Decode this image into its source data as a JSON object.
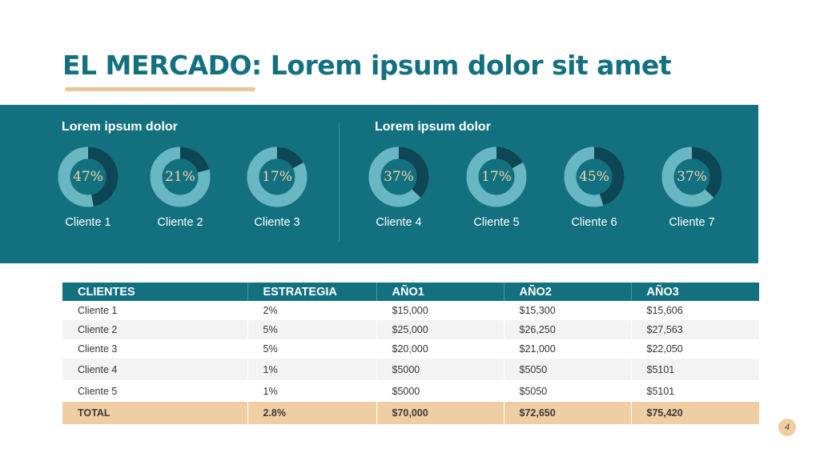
{
  "slide": {
    "title": "EL MERCADO: Lorem ipsum dolor sit amet",
    "page_number": "4"
  },
  "band": {
    "group_labels": [
      "Lorem ipsum dolor",
      "Lorem ipsum dolor"
    ]
  },
  "colors": {
    "teal": "#13707f",
    "ring_light": "#6ab7c4",
    "ring_dark": "#0d4654",
    "accent": "#f0d3ad",
    "total_row": "#f0cea4"
  },
  "chart_data": {
    "type": "pie",
    "style": "donut",
    "categories": [
      "Cliente 1",
      "Cliente 2",
      "Cliente 3",
      "Cliente 4",
      "Cliente 5",
      "Cliente 6",
      "Cliente 7"
    ],
    "values": [
      47,
      21,
      17,
      37,
      17,
      45,
      37
    ],
    "value_labels": [
      "47%",
      "21%",
      "17%",
      "37%",
      "17%",
      "45%",
      "37%"
    ],
    "title": "",
    "unit": "%"
  },
  "table": {
    "headers": [
      "CLIENTES",
      "ESTRATEGIA",
      "AÑO1",
      "AÑO2",
      "AÑO3"
    ],
    "rows": [
      [
        "Cliente 1",
        "2%",
        "$15,000",
        "$15,300",
        "$15,606"
      ],
      [
        "Cliente 2",
        "5%",
        "$25,000",
        "$26,250",
        "$27,563"
      ],
      [
        "Cliente 3",
        "5%",
        "$20,000",
        "$21,000",
        "$22,050"
      ],
      [
        "Cliente 4",
        "1%",
        "$5000",
        "$5050",
        "$5101"
      ],
      [
        "Cliente 5",
        "1%",
        "$5000",
        "$5050",
        "$5101"
      ]
    ],
    "total": [
      "TOTAL",
      "2.8%",
      "$70,000",
      "$72,650",
      "$75,420"
    ]
  }
}
